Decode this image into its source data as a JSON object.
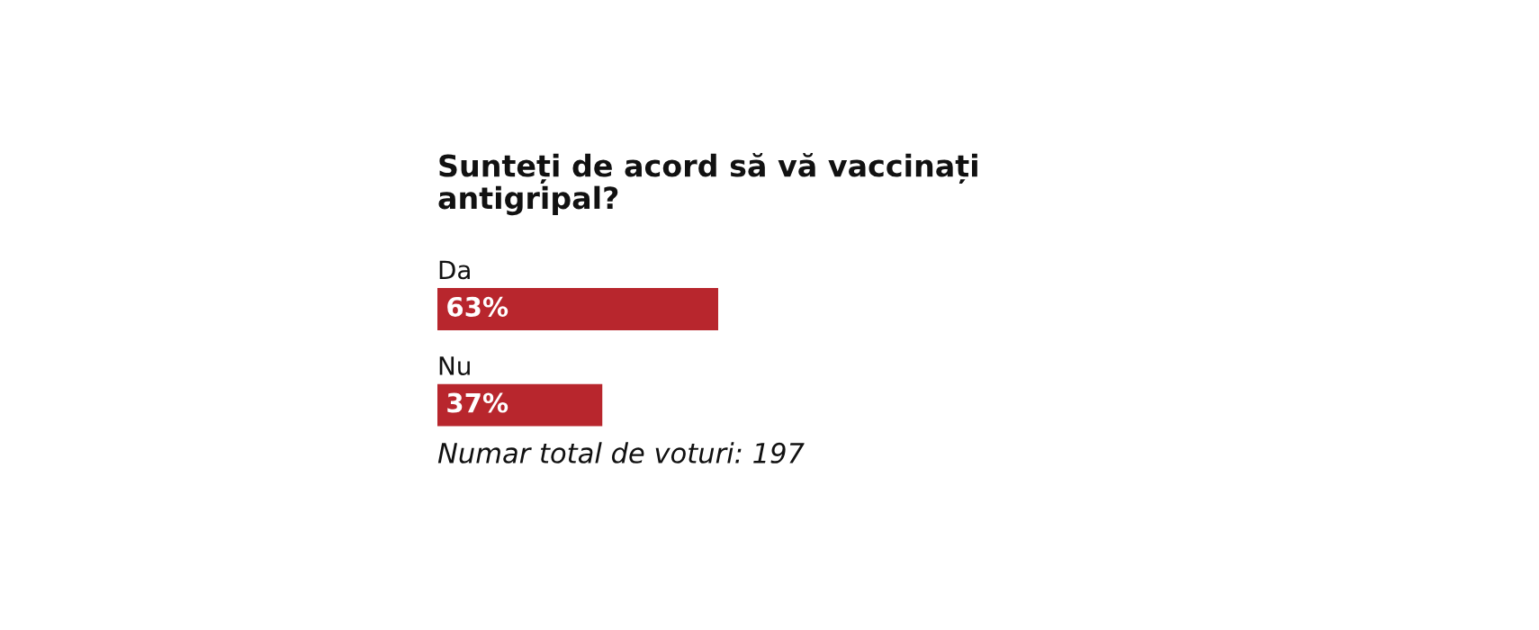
{
  "chart_data": {
    "type": "bar",
    "orientation": "horizontal",
    "tick_labels": false,
    "title": "Sunteți de acord să vă vaccinați\nantigripal?",
    "categories": [
      "Da",
      "Nu"
    ],
    "values": [
      63,
      37
    ],
    "value_labels": [
      "63%",
      "37%"
    ],
    "color": "#b8262d",
    "legend": false,
    "annotations": [
      "Numar total de voturi: 197"
    ]
  }
}
